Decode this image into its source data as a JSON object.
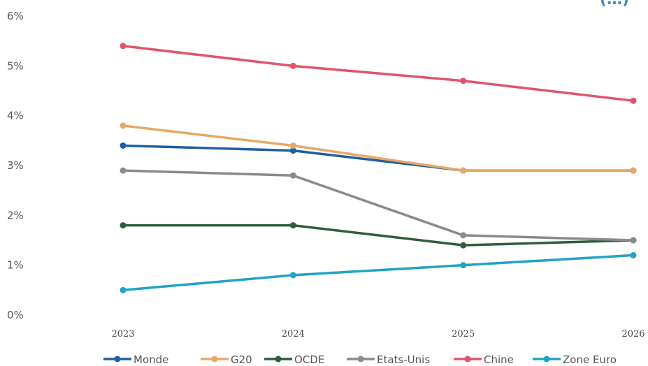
{
  "chart_data": {
    "type": "line",
    "title_fragment": "(…)",
    "x": [
      "2023",
      "2024",
      "2025",
      "2026"
    ],
    "y_ticks": [
      "0%",
      "1%",
      "2%",
      "3%",
      "4%",
      "5%",
      "6%"
    ],
    "ylim": [
      0,
      6
    ],
    "grid": false,
    "legend_position": "bottom",
    "series": [
      {
        "name": "Monde",
        "color": "#1f5fa0",
        "values": [
          3.4,
          3.3,
          2.9,
          2.9
        ]
      },
      {
        "name": "G20",
        "color": "#e7a867",
        "values": [
          3.8,
          3.4,
          2.9,
          2.9
        ]
      },
      {
        "name": "OCDE",
        "color": "#2d5e3c",
        "values": [
          1.8,
          1.8,
          1.4,
          1.5
        ]
      },
      {
        "name": "Etats-Unis",
        "color": "#8a8a8a",
        "values": [
          2.9,
          2.8,
          1.6,
          1.5
        ]
      },
      {
        "name": "Chine",
        "color": "#e0556a",
        "values": [
          5.4,
          5.0,
          4.7,
          4.3
        ]
      },
      {
        "name": "Zone Euro",
        "color": "#21a3c4",
        "values": [
          0.5,
          0.8,
          1.0,
          1.2
        ]
      }
    ]
  }
}
